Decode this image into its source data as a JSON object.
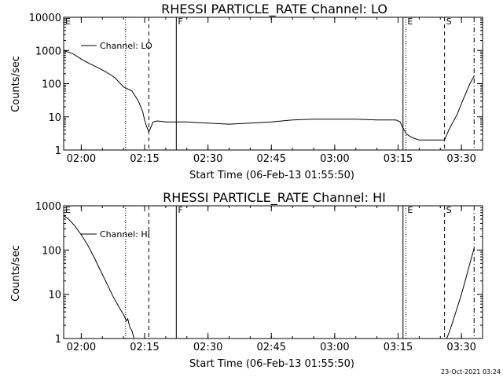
{
  "chart_data": [
    {
      "type": "line",
      "title": "RHESSI PARTICLE_RATE Channel: LO",
      "xlabel": "Start Time (06-Feb-13 01:55:50)",
      "ylabel": "Counts/sec",
      "yscale": "log",
      "ylim": [
        1,
        10000
      ],
      "xlim": [
        "01:55:50",
        "03:35:00"
      ],
      "x_ticks": [
        "02:00",
        "02:15",
        "02:30",
        "02:45",
        "03:00",
        "03:15",
        "03:30"
      ],
      "y_ticks": [
        "1",
        "10",
        "100",
        "1000",
        "10000"
      ],
      "legend": {
        "position": "top-left",
        "entries": [
          "Channel: LO"
        ]
      },
      "grid": false,
      "markers": [
        {
          "time": "01:55:50",
          "label": "E",
          "style": "dotted"
        },
        {
          "time": "02:10:30",
          "label": "",
          "style": "dotted"
        },
        {
          "time": "02:16:00",
          "label": "",
          "style": "dashed"
        },
        {
          "time": "02:22:30",
          "label": "F",
          "style": "solid"
        },
        {
          "time": "03:16:10",
          "label": "",
          "style": "solid"
        },
        {
          "time": "03:16:50",
          "label": "E",
          "style": "dotted"
        },
        {
          "time": "03:26:00",
          "label": "S",
          "style": "dashed"
        },
        {
          "time": "03:33:00",
          "label": "",
          "style": "dashdot"
        }
      ],
      "series": [
        {
          "name": "Channel: LO",
          "x": [
            "01:55:50",
            "01:58:00",
            "02:00:00",
            "02:02:00",
            "02:04:00",
            "02:06:00",
            "02:08:00",
            "02:10:00",
            "02:12:00",
            "02:13:30",
            "02:14:30",
            "02:15:00",
            "02:15:30",
            "02:16:00",
            "02:16:30",
            "02:17:00",
            "02:18:00",
            "02:20:00",
            "02:25:00",
            "02:30:00",
            "02:35:00",
            "02:40:00",
            "02:45:00",
            "02:50:00",
            "02:55:00",
            "03:00:00",
            "03:05:00",
            "03:10:00",
            "03:14:30",
            "03:15:30",
            "03:16:00",
            "03:17:00",
            "03:18:00",
            "03:19:00",
            "03:20:00",
            "03:22:00",
            "03:24:00",
            "03:26:00",
            "03:27:00",
            "03:28:00",
            "03:29:00",
            "03:30:00",
            "03:31:00",
            "03:32:00",
            "03:33:00"
          ],
          "y": [
            1000,
            800,
            550,
            400,
            300,
            220,
            150,
            80,
            60,
            30,
            15,
            8,
            5,
            3.5,
            5,
            7,
            7.5,
            7,
            7,
            6.5,
            6,
            6.5,
            7,
            8,
            8.5,
            8.5,
            8.5,
            8,
            8,
            7,
            5,
            3,
            2.5,
            2.2,
            2.0,
            2.0,
            2.0,
            2.0,
            4,
            7,
            12,
            25,
            50,
            100,
            170
          ]
        }
      ]
    },
    {
      "type": "line",
      "title": "RHESSI PARTICLE_RATE Channel: HI",
      "xlabel": "Start Time (06-Feb-13 01:55:50)",
      "ylabel": "Counts/sec",
      "yscale": "log",
      "ylim": [
        1,
        1000
      ],
      "xlim": [
        "01:55:50",
        "03:35:00"
      ],
      "x_ticks": [
        "02:00",
        "02:15",
        "02:30",
        "02:45",
        "03:00",
        "03:15",
        "03:30"
      ],
      "y_ticks": [
        "1",
        "10",
        "100",
        "1000"
      ],
      "legend": {
        "position": "top-left",
        "entries": [
          "Channel: HI"
        ]
      },
      "grid": false,
      "markers": [
        {
          "time": "01:55:50",
          "label": "E",
          "style": "dotted"
        },
        {
          "time": "02:10:30",
          "label": "",
          "style": "dotted"
        },
        {
          "time": "02:16:00",
          "label": "",
          "style": "dashed"
        },
        {
          "time": "02:22:30",
          "label": "F",
          "style": "solid"
        },
        {
          "time": "03:16:10",
          "label": "",
          "style": "solid"
        },
        {
          "time": "03:16:50",
          "label": "E",
          "style": "dotted"
        },
        {
          "time": "03:26:00",
          "label": "S",
          "style": "dashed"
        },
        {
          "time": "03:33:00",
          "label": "",
          "style": "dashdot"
        }
      ],
      "series": [
        {
          "name": "Channel: HI",
          "x": [
            "01:55:50",
            "01:57:00",
            "01:58:30",
            "02:00:00",
            "02:01:30",
            "02:03:00",
            "02:04:30",
            "02:06:00",
            "02:07:30",
            "02:09:00",
            "02:10:00",
            "02:10:40",
            "02:11:00",
            "02:11:30",
            "02:12:00",
            "02:12:30",
            "02:13:00",
            null,
            "03:26:30",
            "03:27:00",
            "03:28:00",
            "03:29:00",
            "03:30:00",
            "03:31:00",
            "03:32:00",
            "03:33:00"
          ],
          "y": [
            600,
            500,
            350,
            220,
            130,
            70,
            35,
            18,
            9,
            5,
            3.5,
            2.5,
            2.8,
            1.8,
            1.5,
            1.0,
            1.0,
            null,
            1.0,
            1.3,
            2.5,
            5,
            10,
            22,
            50,
            110
          ]
        }
      ]
    }
  ],
  "footer": {
    "timestamp": "23-Oct-2021 03:24"
  }
}
